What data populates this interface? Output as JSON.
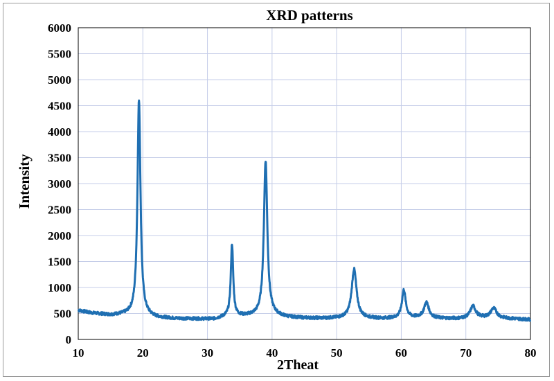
{
  "chart_data": {
    "type": "line",
    "title": "XRD patterns",
    "xlabel": "2Theat",
    "ylabel": "Intensity",
    "xlim": [
      10,
      80
    ],
    "ylim": [
      0,
      6000
    ],
    "xticks": [
      10,
      20,
      30,
      40,
      50,
      60,
      70,
      80
    ],
    "yticks": [
      0,
      500,
      1000,
      1500,
      2000,
      2500,
      3000,
      3500,
      4000,
      4500,
      5000,
      5500,
      6000
    ],
    "grid": true,
    "legend": "none",
    "line_color": "#1f6fb2",
    "series": [
      {
        "baseline": [
          [
            10,
            560
          ],
          [
            12,
            510
          ],
          [
            15,
            470
          ],
          [
            18,
            480
          ],
          [
            20,
            470
          ],
          [
            22,
            420
          ],
          [
            25,
            400
          ],
          [
            28,
            395
          ],
          [
            31,
            390
          ],
          [
            33,
            440
          ],
          [
            36,
            450
          ],
          [
            38,
            460
          ],
          [
            40,
            470
          ],
          [
            42,
            430
          ],
          [
            45,
            410
          ],
          [
            48,
            405
          ],
          [
            51,
            410
          ],
          [
            54,
            410
          ],
          [
            57,
            400
          ],
          [
            60,
            410
          ],
          [
            63,
            420
          ],
          [
            66,
            405
          ],
          [
            69,
            400
          ],
          [
            72,
            420
          ],
          [
            75,
            410
          ],
          [
            77,
            400
          ],
          [
            80,
            380
          ]
        ],
        "peaks": [
          {
            "x": 19.4,
            "y": 4620
          },
          {
            "x": 33.8,
            "y": 1830
          },
          {
            "x": 39.0,
            "y": 3440
          },
          {
            "x": 52.7,
            "y": 1350
          },
          {
            "x": 60.4,
            "y": 950
          },
          {
            "x": 63.9,
            "y": 710
          },
          {
            "x": 71.1,
            "y": 640
          },
          {
            "x": 74.3,
            "y": 600
          }
        ]
      }
    ]
  }
}
